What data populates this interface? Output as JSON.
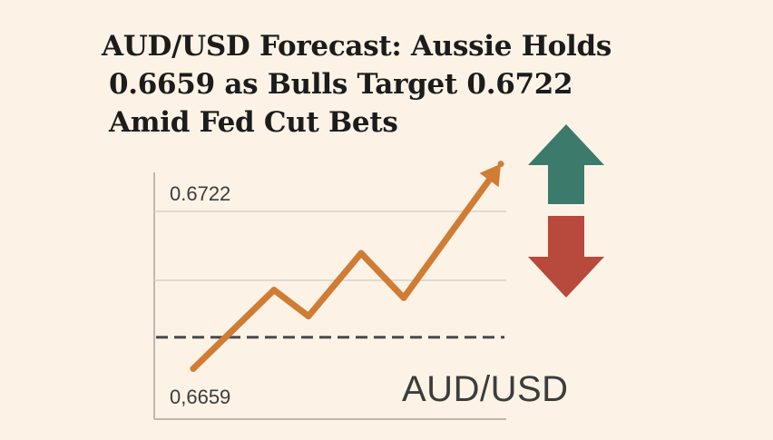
{
  "headline": {
    "line1": "AUD/USD Forecast: Aussie Holds",
    "line2": "0.6659 as Bulls Target 0.6722",
    "line3": "Amid Fed Cut Bets"
  },
  "colors": {
    "background": "#fcf3e6",
    "trend_line": "#d07c35",
    "up_arrow": "#3c7a6c",
    "down_arrow": "#b8493d",
    "grid": "#d9d2c5",
    "axis": "#bfb8ac",
    "support_dash": "#4a4a4a",
    "text": "#3c3c3c"
  },
  "icons": {
    "up": "up-arrow-icon",
    "down": "down-arrow-icon"
  },
  "chart_data": {
    "type": "line",
    "pair_label": "AUD/USD",
    "y_tick_labels": [
      "0.6722",
      "0,6659"
    ],
    "values": [
      0.6654,
      0.6684,
      0.6674,
      0.6698,
      0.6681,
      0.6732
    ],
    "ylim": [
      0.665,
      0.6735
    ],
    "reference_level": 0.6666,
    "grid": true,
    "arrow_end": true
  }
}
